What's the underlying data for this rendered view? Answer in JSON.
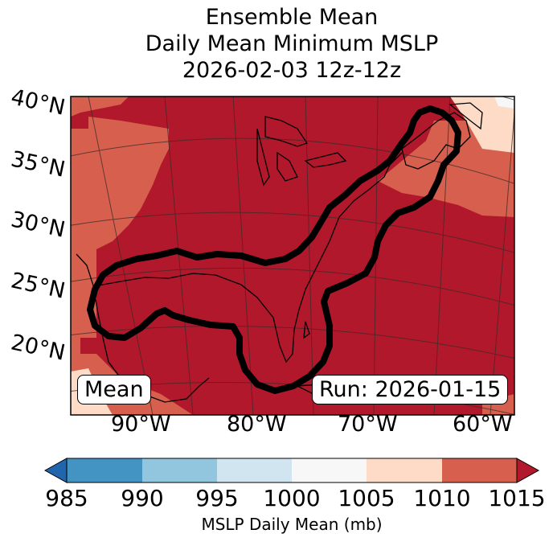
{
  "title": {
    "line1": "Ensemble Mean",
    "line2": "Daily Mean Minimum MSLP",
    "line3": "2026-02-03 12z-12z"
  },
  "map": {
    "lat_labels": [
      "40°N",
      "35°N",
      "30°N",
      "25°N",
      "20°N"
    ],
    "lon_labels": [
      "90°W",
      "80°W",
      "70°W",
      "60°W"
    ],
    "mean_label": "Mean",
    "run_label": "Run: 2026-01-15",
    "contour_color": "#000000",
    "fill_colors": {
      "1010-1015": "#b2182b",
      "1005-1010": "#d6604d",
      "1000-1005": "#fddbc7",
      "995-1000": "#f7f7f7"
    }
  },
  "colorbar": {
    "ticks": [
      "985",
      "990",
      "995",
      "1000",
      "1005",
      "1010",
      "1015"
    ],
    "label": "MSLP Daily Mean (mb)",
    "colors": [
      "#2166ac",
      "#4393c3",
      "#92c5de",
      "#d1e5f0",
      "#f7f7f7",
      "#fddbc7",
      "#d6604d",
      "#b2182b"
    ]
  }
}
